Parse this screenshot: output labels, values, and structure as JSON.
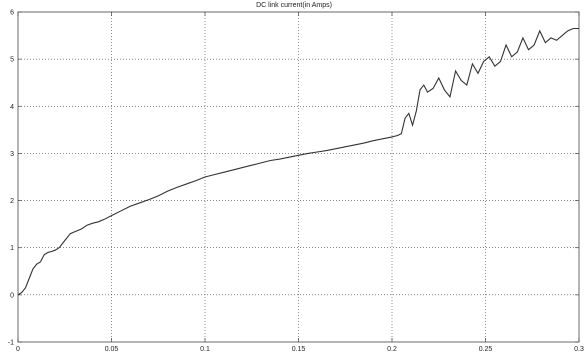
{
  "chart_data": {
    "type": "line",
    "title": "DC link current(in Amps)",
    "xlabel": "",
    "ylabel": "",
    "xlim": [
      0,
      0.3
    ],
    "ylim": [
      -1,
      6
    ],
    "x_ticks": [
      "0",
      "0.05",
      "0.1",
      "0.15",
      "0.2",
      "0.25",
      "0.3"
    ],
    "y_ticks": [
      "-1",
      "0",
      "1",
      "2",
      "3",
      "4",
      "5",
      "6"
    ],
    "grid": true,
    "line_color": "#333333",
    "grid_color": "#444444",
    "series": [
      {
        "x": [
          0,
          0.002,
          0.004,
          0.006,
          0.008,
          0.01,
          0.012,
          0.014,
          0.016,
          0.018,
          0.02,
          0.022,
          0.025,
          0.028,
          0.031,
          0.034,
          0.037,
          0.04,
          0.043,
          0.046,
          0.05,
          0.055,
          0.06,
          0.065,
          0.07,
          0.075,
          0.08,
          0.085,
          0.09,
          0.095,
          0.1,
          0.105,
          0.11,
          0.115,
          0.12,
          0.125,
          0.13,
          0.135,
          0.14,
          0.145,
          0.15,
          0.155,
          0.16,
          0.165,
          0.17,
          0.175,
          0.18,
          0.185,
          0.19,
          0.195,
          0.2,
          0.203,
          0.205,
          0.207,
          0.209,
          0.211,
          0.213,
          0.215,
          0.217,
          0.219,
          0.222,
          0.225,
          0.228,
          0.231,
          0.234,
          0.237,
          0.24,
          0.243,
          0.246,
          0.249,
          0.252,
          0.255,
          0.258,
          0.261,
          0.264,
          0.267,
          0.27,
          0.273,
          0.276,
          0.279,
          0.282,
          0.285,
          0.288,
          0.291,
          0.294,
          0.297,
          0.3
        ],
        "y": [
          0.0,
          0.05,
          0.15,
          0.35,
          0.55,
          0.65,
          0.7,
          0.85,
          0.9,
          0.92,
          0.95,
          1.0,
          1.15,
          1.3,
          1.35,
          1.4,
          1.48,
          1.52,
          1.55,
          1.6,
          1.68,
          1.78,
          1.88,
          1.95,
          2.02,
          2.1,
          2.2,
          2.28,
          2.35,
          2.42,
          2.5,
          2.55,
          2.6,
          2.65,
          2.7,
          2.75,
          2.8,
          2.85,
          2.88,
          2.92,
          2.96,
          3.0,
          3.03,
          3.06,
          3.1,
          3.14,
          3.18,
          3.22,
          3.27,
          3.31,
          3.35,
          3.38,
          3.42,
          3.75,
          3.85,
          3.6,
          3.9,
          4.35,
          4.45,
          4.3,
          4.38,
          4.6,
          4.35,
          4.2,
          4.75,
          4.55,
          4.45,
          4.9,
          4.7,
          4.95,
          5.05,
          4.85,
          4.95,
          5.3,
          5.05,
          5.15,
          5.45,
          5.2,
          5.3,
          5.6,
          5.35,
          5.45,
          5.4,
          5.5,
          5.6,
          5.65,
          5.65
        ]
      }
    ]
  }
}
